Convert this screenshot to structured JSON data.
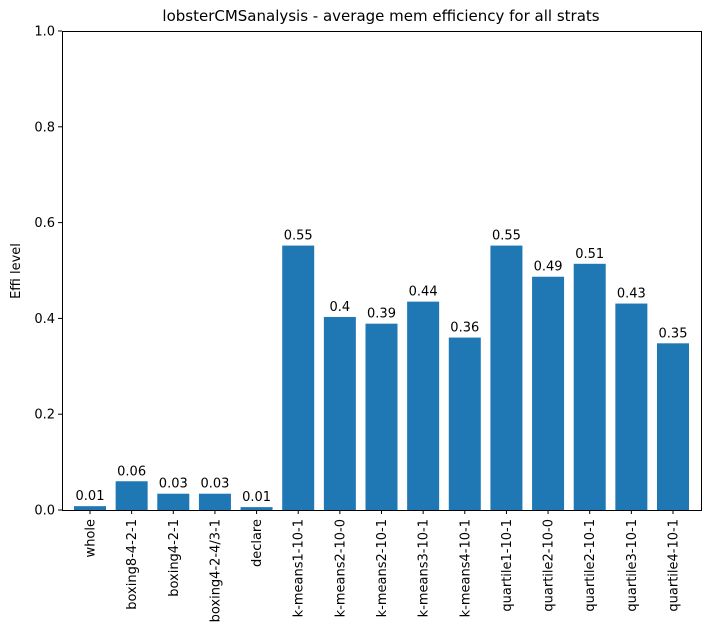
{
  "chart_data": {
    "type": "bar",
    "title": "lobsterCMSanalysis - average mem efficiency for all strats",
    "xlabel": "",
    "ylabel": "Effi level",
    "ylim": [
      0,
      1
    ],
    "yticks": [
      "0.0",
      "0.2",
      "0.4",
      "0.6",
      "0.8",
      "1.0"
    ],
    "grid": false,
    "bar_color": "#1f77b4",
    "categories": [
      "whole",
      "boxing8-4-2-1",
      "boxing4-2-1",
      "boxing4-2-4/3-1",
      "declare",
      "k-means1-10-1",
      "k-means2-10-0",
      "k-means2-10-1",
      "k-means3-10-1",
      "k-means4-10-1",
      "quartile1-10-1",
      "quartile2-10-0",
      "quartile2-10-1",
      "quartile3-10-1",
      "quartile4-10-1"
    ],
    "values": [
      0.008,
      0.06,
      0.034,
      0.034,
      0.006,
      0.552,
      0.403,
      0.389,
      0.435,
      0.36,
      0.552,
      0.487,
      0.514,
      0.431,
      0.348
    ],
    "labels": [
      "0.01",
      "0.06",
      "0.03",
      "0.03",
      "0.01",
      "0.55",
      "0.4",
      "0.39",
      "0.44",
      "0.36",
      "0.55",
      "0.49",
      "0.51",
      "0.43",
      "0.35"
    ]
  }
}
